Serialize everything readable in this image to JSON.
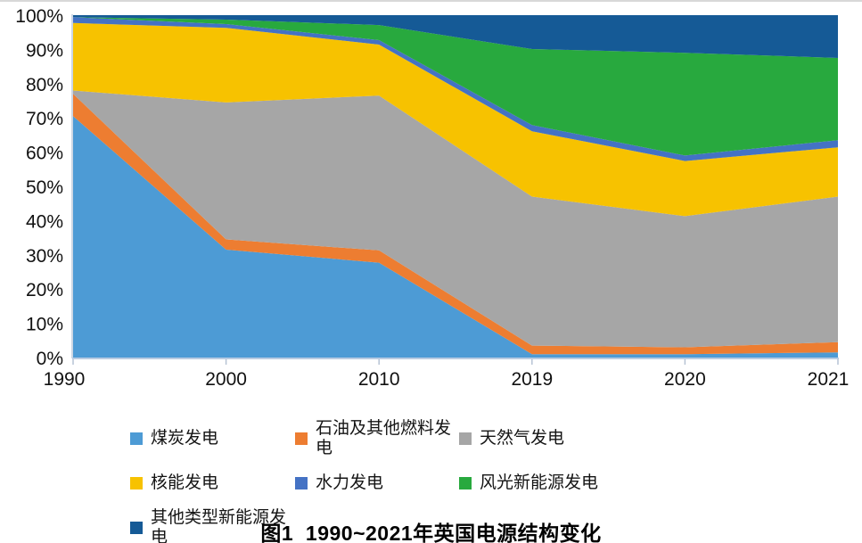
{
  "figure": {
    "caption": "图1  1990~2021年英国电源结构变化"
  },
  "chart_data": {
    "type": "area",
    "stacked": true,
    "unit": "percent",
    "title": "图1  1990~2021年英国电源结构变化",
    "xlabel": "",
    "ylabel": "",
    "ylim": [
      0,
      100
    ],
    "grid": false,
    "legend_position": "bottom",
    "categories": [
      "1990",
      "2000",
      "2010",
      "2019",
      "2020",
      "2021"
    ],
    "y_ticks": [
      "0%",
      "10%",
      "20%",
      "30%",
      "40%",
      "50%",
      "60%",
      "70%",
      "80%",
      "90%",
      "100%"
    ],
    "series": [
      {
        "name": "煤炭发电",
        "id": "coal",
        "color": "#4D9BD5",
        "values": [
          70.5,
          31.5,
          27.7,
          1.0,
          1.0,
          1.5
        ]
      },
      {
        "name": "石油及其他燃料发电",
        "id": "oil-other-fuel",
        "color": "#ED7D31",
        "values": [
          6.5,
          3.0,
          3.6,
          2.5,
          2.0,
          3.0
        ]
      },
      {
        "name": "天然气发电",
        "id": "natural-gas",
        "color": "#A6A6A6",
        "values": [
          1.0,
          40.0,
          45.2,
          43.5,
          38.3,
          42.5
        ]
      },
      {
        "name": "核能发电",
        "id": "nuclear",
        "color": "#F7C200",
        "values": [
          19.7,
          21.8,
          14.9,
          19.1,
          16.1,
          14.4
        ]
      },
      {
        "name": "水力发电",
        "id": "hydro",
        "color": "#4472C4",
        "values": [
          1.7,
          1.1,
          1.3,
          1.8,
          1.6,
          2.1
        ]
      },
      {
        "name": "风光新能源发电",
        "id": "wind-solar",
        "color": "#28A93E",
        "values": [
          0.0,
          1.3,
          4.4,
          22.2,
          30.0,
          24.0
        ]
      },
      {
        "name": "其他类型新能源发电",
        "id": "other-new-energy",
        "color": "#155A96",
        "values": [
          0.6,
          1.3,
          2.9,
          9.9,
          11.0,
          12.5
        ]
      }
    ]
  }
}
